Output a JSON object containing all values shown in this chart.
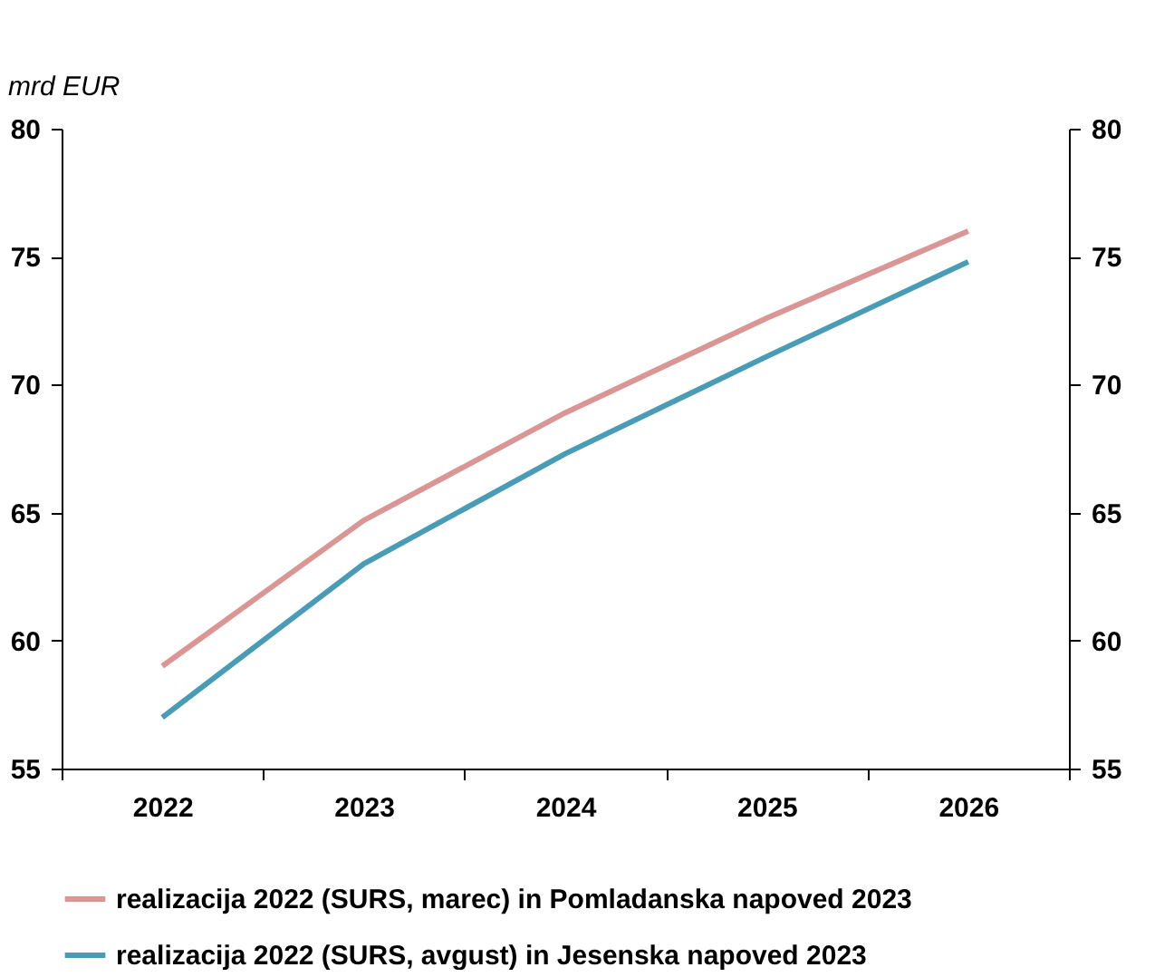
{
  "chart_data": {
    "type": "line",
    "ylabel": "mrd EUR",
    "categories": [
      "2022",
      "2023",
      "2024",
      "2025",
      "2026"
    ],
    "series": [
      {
        "name": "realizacija 2022 (SURS, marec) in Pomladanska napoved 2023",
        "color": "#d99694",
        "values": [
          59.0,
          64.7,
          68.9,
          72.6,
          76.0
        ]
      },
      {
        "name": "realizacija 2022 (SURS, avgust) in Jesenska napoved 2023",
        "color": "#4a9bb5",
        "values": [
          57.0,
          63.0,
          67.3,
          71.1,
          74.8
        ]
      }
    ],
    "ylim": [
      55,
      80
    ],
    "yticks": [
      55,
      60,
      65,
      70,
      75,
      80
    ],
    "y2lim": [
      55,
      80
    ],
    "y2ticks": [
      55,
      60,
      65,
      70,
      75,
      80
    ],
    "grid": false,
    "legend": "bottom",
    "marker": "none",
    "line_style": "solid"
  }
}
